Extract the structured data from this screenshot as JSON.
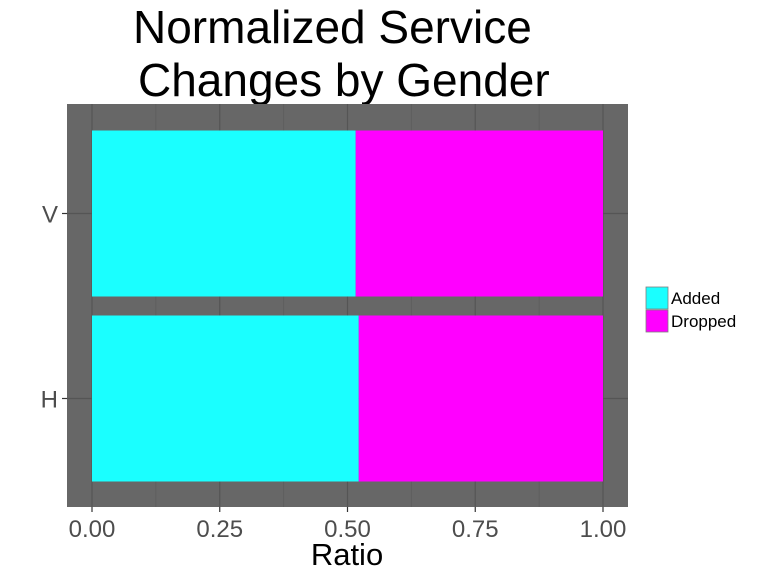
{
  "chart_data": {
    "type": "bar",
    "orientation": "horizontal",
    "stacked": true,
    "title": "Normalized Service\n Changes by Gender",
    "xlabel": "Ratio",
    "ylabel": "",
    "xlim": [
      0,
      1
    ],
    "x_ticks": [
      "0.00",
      "0.25",
      "0.50",
      "0.75",
      "1.00"
    ],
    "categories": [
      "V",
      "H"
    ],
    "series": [
      {
        "name": "Added",
        "color": "#1affff",
        "values": [
          0.516,
          0.522
        ]
      },
      {
        "name": "Dropped",
        "color": "#ff00ff",
        "values": [
          0.484,
          0.478
        ]
      }
    ],
    "panel_background": "#676767",
    "grid": true,
    "legend_position": "right"
  }
}
